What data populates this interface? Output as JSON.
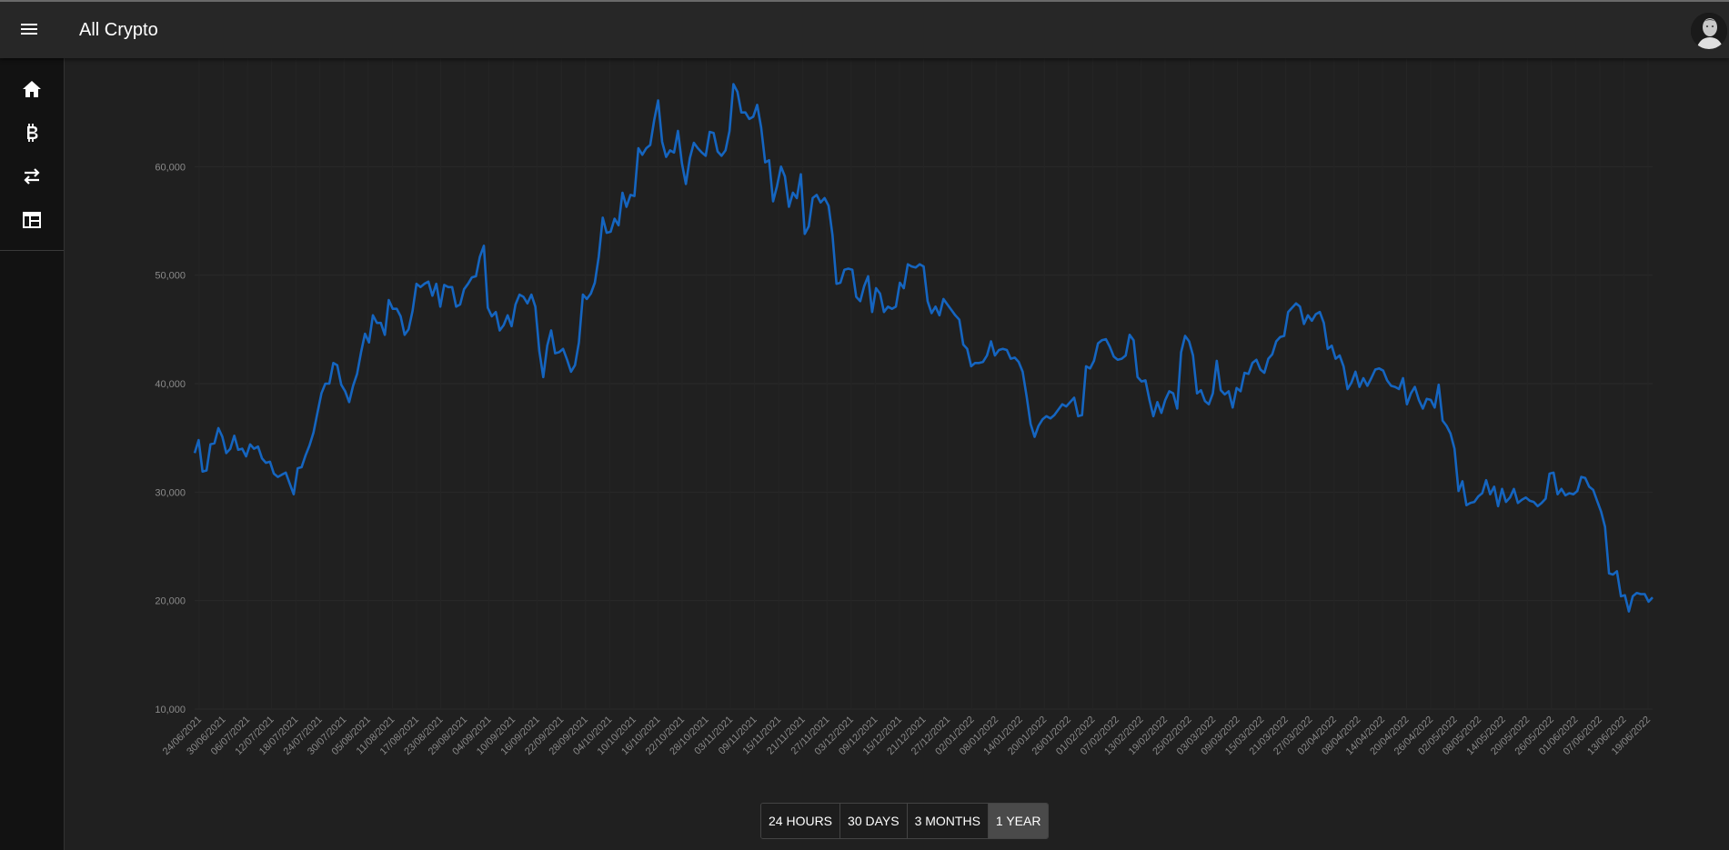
{
  "app": {
    "title": "All Crypto"
  },
  "header": {
    "menu_icon": "hamburger-menu-icon",
    "avatar_icon": "user-avatar"
  },
  "sidebar": {
    "items": [
      {
        "icon": "home-icon"
      },
      {
        "icon": "bitcoin-icon"
      },
      {
        "icon": "swap-arrows-icon"
      },
      {
        "icon": "table-icon"
      }
    ]
  },
  "range_selector": {
    "options": [
      "24 HOURS",
      "30 DAYS",
      "3 MONTHS",
      "1 YEAR"
    ],
    "selected": "1 YEAR"
  },
  "colors": {
    "line": "#1565c0",
    "background": "#202020",
    "topbar": "#272727",
    "sidebar": "#121212",
    "tick_text": "#8a8a8a",
    "grid": "#2a2a2a"
  },
  "chart_data": {
    "type": "line",
    "title": "",
    "xlabel": "",
    "ylabel": "",
    "ylim": [
      10000,
      70000
    ],
    "yticks": [
      {
        "value": 10000,
        "label": "10,000"
      },
      {
        "value": 20000,
        "label": "20,000"
      },
      {
        "value": 30000,
        "label": "30,000"
      },
      {
        "value": 40000,
        "label": "40,000"
      },
      {
        "value": 50000,
        "label": "50,000"
      },
      {
        "value": 60000,
        "label": "60,000"
      }
    ],
    "xticks": [
      "24/06/2021",
      "30/06/2021",
      "06/07/2021",
      "12/07/2021",
      "18/07/2021",
      "24/07/2021",
      "30/07/2021",
      "05/08/2021",
      "11/08/2021",
      "17/08/2021",
      "23/08/2021",
      "29/08/2021",
      "04/09/2021",
      "10/09/2021",
      "16/09/2021",
      "22/09/2021",
      "28/09/2021",
      "04/10/2021",
      "10/10/2021",
      "16/10/2021",
      "22/10/2021",
      "28/10/2021",
      "03/11/2021",
      "09/11/2021",
      "15/11/2021",
      "21/11/2021",
      "27/11/2021",
      "03/12/2021",
      "09/12/2021",
      "15/12/2021",
      "21/12/2021",
      "27/12/2021",
      "02/01/2022",
      "08/01/2022",
      "14/01/2022",
      "20/01/2022",
      "26/01/2022",
      "01/02/2022",
      "07/02/2022",
      "13/02/2022",
      "19/02/2022",
      "25/02/2022",
      "03/03/2022",
      "09/03/2022",
      "15/03/2022",
      "21/03/2022",
      "27/03/2022",
      "02/04/2022",
      "08/04/2022",
      "14/04/2022",
      "20/04/2022",
      "26/04/2022",
      "02/05/2022",
      "08/05/2022",
      "14/05/2022",
      "20/05/2022",
      "26/05/2022",
      "01/06/2022",
      "07/06/2022",
      "13/06/2022",
      "19/06/2022"
    ],
    "series": [
      {
        "values": [
          33600,
          34800,
          31900,
          32000,
          34400,
          34500,
          35900,
          35100,
          33600,
          34000,
          35200,
          33900,
          34000,
          33300,
          34400,
          34000,
          34200,
          33100,
          32700,
          32800,
          31700,
          31400,
          31600,
          31800,
          30800,
          29800,
          32200,
          32300,
          33400,
          34300,
          35500,
          37300,
          39100,
          40000,
          40000,
          41900,
          41700,
          39900,
          39300,
          38300,
          39800,
          40900,
          42900,
          44600,
          43800,
          46300,
          45600,
          45600,
          44500,
          47700,
          46900,
          46900,
          46200,
          44500,
          45000,
          46700,
          49200,
          48900,
          49200,
          49400,
          48100,
          49200,
          47100,
          49100,
          48900,
          48900,
          47100,
          47300,
          48700,
          49200,
          49800,
          49900,
          51700,
          52700,
          47000,
          46200,
          46600,
          44900,
          45400,
          46300,
          45300,
          47300,
          48200,
          48000,
          47400,
          48200,
          47100,
          43000,
          40600,
          43500,
          44900,
          42800,
          42900,
          43200,
          42200,
          41100,
          41700,
          43800,
          48200,
          47800,
          48300,
          49300,
          51700,
          55300,
          53900,
          54000,
          55200,
          54600,
          57600,
          56300,
          57400,
          57300,
          61700,
          61100,
          61700,
          62000,
          64300,
          66100,
          62300,
          60900,
          61500,
          61300,
          63300,
          60300,
          58400,
          60800,
          62200,
          61700,
          61300,
          61000,
          63200,
          63100,
          61400,
          61000,
          61500,
          63300,
          67600,
          66900,
          65000,
          65000,
          64400,
          64600,
          65700,
          63600,
          60400,
          60600,
          56800,
          58200,
          60000,
          59100,
          56300,
          57600,
          57100,
          59300,
          53800,
          54500,
          57100,
          57400,
          56700,
          57100,
          56400,
          53700,
          49200,
          49300,
          50500,
          50600,
          50500,
          48000,
          47600,
          49000,
          49900,
          46600,
          48800,
          48300,
          46600,
          47100,
          46900,
          47100,
          49300,
          48800,
          51000,
          50800,
          50700,
          51000,
          50800,
          47600,
          46500,
          47100,
          46300,
          47800,
          47300,
          46800,
          46300,
          45900,
          43600,
          43200,
          41600,
          41900,
          41900,
          42000,
          42600,
          43900,
          42600,
          43100,
          43200,
          43100,
          42300,
          42400,
          42000,
          41100,
          38800,
          36300,
          35100,
          36100,
          36700,
          37000,
          36800,
          37100,
          37600,
          38100,
          37900,
          38300,
          38700,
          37000,
          37100,
          41600,
          41400,
          42100,
          43700,
          44000,
          44100,
          43400,
          42500,
          42200,
          42300,
          42600,
          44500,
          44000,
          40600,
          40200,
          40300,
          38500,
          37000,
          38300,
          37300,
          38500,
          39300,
          39100,
          37700,
          42900,
          44400,
          43900,
          42600,
          39100,
          39400,
          38400,
          38100,
          39100,
          42100,
          39400,
          39000,
          39300,
          37800,
          39600,
          39300,
          41000,
          40900,
          41900,
          42200,
          41300,
          41000,
          42300,
          42700,
          43900,
          44300,
          44400,
          46600,
          47000,
          47400,
          47100,
          45500,
          46300,
          45800,
          46400,
          46600,
          45600,
          43200,
          43500,
          42300,
          42600,
          41600,
          39500,
          40100,
          41100,
          39700,
          40500,
          39800,
          40500,
          41300,
          41400,
          41200,
          40300,
          39800,
          39700,
          39500,
          40500,
          38100,
          39100,
          39700,
          38500,
          37700,
          38600,
          38500,
          37800,
          39900,
          36600,
          36100,
          35400,
          34000,
          30100,
          31000,
          28800,
          29000,
          29100,
          29600,
          29900,
          31100,
          29800,
          30500,
          28700,
          30300,
          29100,
          29500,
          30300,
          29000,
          29300,
          29500,
          29200,
          29100,
          28700,
          29000,
          29400,
          31700,
          31800,
          29800,
          30300,
          29700,
          29900,
          29800,
          30100,
          31400,
          31300,
          30500,
          30200,
          29200,
          28200,
          26800,
          22500,
          22400,
          22700,
          20400,
          20500,
          19000,
          20400,
          20700,
          20600,
          20600,
          19900,
          20300
        ]
      }
    ]
  }
}
